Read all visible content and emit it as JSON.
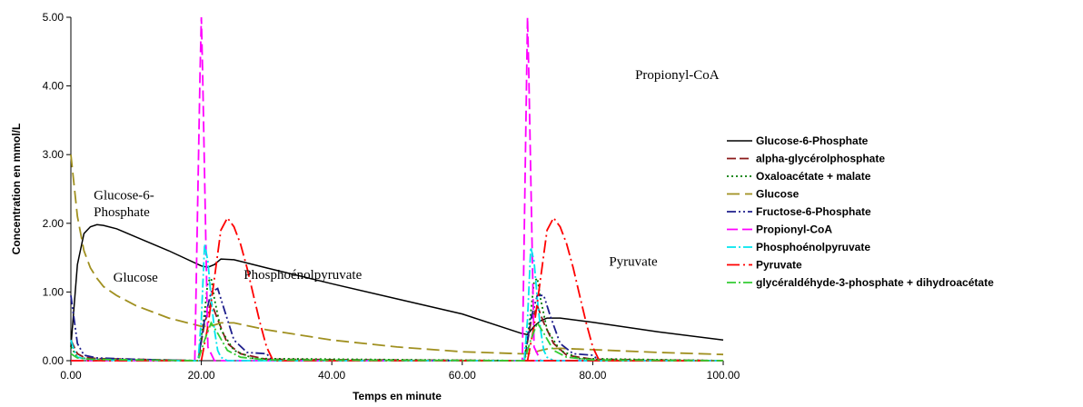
{
  "chart_data": {
    "type": "line",
    "xlabel": "Temps en minute",
    "ylabel": "Concentration en mmol/L",
    "xlim": [
      0,
      100
    ],
    "ylim": [
      0,
      5
    ],
    "x_ticks": [
      "0.00",
      "20.00",
      "40.00",
      "60.00",
      "80.00",
      "100.00"
    ],
    "y_ticks": [
      "0.00",
      "1.00",
      "2.00",
      "3.00",
      "4.00",
      "5.00"
    ],
    "grid": false,
    "legend_position": "right",
    "annotations": [
      {
        "text": "Glucose-6-",
        "x": 3.5,
        "y": 2.35
      },
      {
        "text": "Phosphate",
        "x": 3.5,
        "y": 2.1
      },
      {
        "text": "Glucose",
        "x": 6.5,
        "y": 1.15
      },
      {
        "text": "Phosphoénolpyruvate",
        "x": 26.5,
        "y": 1.19
      },
      {
        "text": "Propionyl-CoA",
        "x": 86.5,
        "y": 4.1
      },
      {
        "text": "Pyruvate",
        "x": 82.5,
        "y": 1.38
      }
    ],
    "series": [
      {
        "name": "Glucose-6-Phosphate",
        "color": "#000000",
        "dash": "",
        "x": [
          0,
          1,
          2,
          3,
          4,
          5,
          7,
          10,
          15,
          20,
          21,
          22,
          23,
          25,
          30,
          40,
          50,
          60,
          69,
          70,
          71,
          72,
          73,
          75,
          80,
          90,
          100
        ],
        "y": [
          0.2,
          1.4,
          1.85,
          1.95,
          1.98,
          1.97,
          1.92,
          1.8,
          1.6,
          1.38,
          1.36,
          1.4,
          1.48,
          1.47,
          1.35,
          1.12,
          0.9,
          0.68,
          0.4,
          0.38,
          0.5,
          0.58,
          0.62,
          0.62,
          0.56,
          0.42,
          0.3
        ]
      },
      {
        "name": "alpha-glycérolphosphate",
        "color": "#8B1A1A",
        "dash": "10,4",
        "x": [
          0,
          1,
          2,
          4,
          10,
          19.5,
          20.5,
          21.5,
          22.5,
          24,
          26,
          30,
          69.5,
          70.5,
          71.5,
          72.5,
          74,
          76,
          80,
          100
        ],
        "y": [
          0.3,
          0.1,
          0.05,
          0.03,
          0.02,
          0.0,
          0.55,
          0.85,
          0.6,
          0.25,
          0.1,
          0.02,
          0.0,
          0.55,
          0.8,
          0.55,
          0.25,
          0.08,
          0.02,
          0.0
        ]
      },
      {
        "name": "Oxaloacétate + malate",
        "color": "#007A00",
        "dash": "2,3",
        "x": [
          0,
          1,
          3,
          10,
          19.5,
          20.5,
          21,
          21.5,
          22,
          23,
          25,
          28,
          69.5,
          70.5,
          71,
          71.5,
          72,
          73,
          75,
          78,
          100
        ],
        "y": [
          0.2,
          0.05,
          0.02,
          0.01,
          0.0,
          0.7,
          1.15,
          1.2,
          0.9,
          0.45,
          0.15,
          0.03,
          0.0,
          0.7,
          1.15,
          1.2,
          0.9,
          0.45,
          0.15,
          0.03,
          0.0
        ]
      },
      {
        "name": "Glucose",
        "color": "#A09020",
        "dash": "14,6",
        "x": [
          0,
          1,
          2,
          3,
          4,
          5,
          7,
          10,
          15,
          20,
          21,
          22,
          23,
          25,
          30,
          40,
          50,
          60,
          69,
          70,
          71,
          72,
          73,
          75,
          80,
          90,
          100
        ],
        "y": [
          3.0,
          2.1,
          1.6,
          1.35,
          1.2,
          1.08,
          0.95,
          0.8,
          0.62,
          0.5,
          0.5,
          0.52,
          0.55,
          0.55,
          0.45,
          0.3,
          0.2,
          0.13,
          0.1,
          0.1,
          0.12,
          0.15,
          0.17,
          0.18,
          0.16,
          0.12,
          0.09
        ]
      },
      {
        "name": "Fructose-6-Phosphate",
        "color": "#1E1E8C",
        "dash": "10,3,2,3,2,3",
        "x": [
          0,
          0.5,
          1,
          2,
          4,
          10,
          19.5,
          20.5,
          21.5,
          22.5,
          23.5,
          25,
          27,
          30,
          31,
          69.5,
          70.5,
          71.5,
          72.5,
          73.5,
          75,
          77,
          80,
          81,
          100
        ],
        "y": [
          0.95,
          0.6,
          0.25,
          0.08,
          0.04,
          0.02,
          0.0,
          0.6,
          1.0,
          1.05,
          0.75,
          0.3,
          0.12,
          0.1,
          0.0,
          0.0,
          0.6,
          0.95,
          0.95,
          0.65,
          0.25,
          0.1,
          0.08,
          0.0,
          0.0
        ]
      },
      {
        "name": "Propionyl-CoA",
        "color": "#FF00FF",
        "dash": "12,5",
        "x": [
          0,
          19,
          19.8,
          20,
          20.2,
          21,
          22,
          100
        ],
        "y": [
          0,
          0,
          4.2,
          5.0,
          4.2,
          0.2,
          0.0,
          0
        ],
        "x2": [
          68,
          69.2,
          70,
          70.2,
          71,
          72,
          100
        ],
        "y2": [
          0,
          0,
          5.0,
          4.2,
          0.2,
          0.0,
          0
        ]
      },
      {
        "name": "Phosphoénolpyruvate",
        "color": "#00E5EE",
        "dash": "10,3,2,3",
        "x": [
          0,
          0.5,
          1,
          3,
          10,
          19.5,
          20,
          20.5,
          21,
          21.5,
          22,
          22.5,
          23,
          24,
          100
        ],
        "y": [
          0.3,
          0.15,
          0.05,
          0.01,
          0.0,
          0.0,
          0.6,
          1.7,
          1.45,
          0.9,
          0.45,
          0.15,
          0.05,
          0.0,
          0.0
        ],
        "x2": [
          69.5,
          70,
          70.5,
          71,
          71.5,
          72,
          72.5,
          73,
          74,
          100
        ],
        "y2": [
          0.0,
          0.6,
          1.65,
          1.45,
          0.9,
          0.45,
          0.15,
          0.05,
          0.0,
          0.0
        ]
      },
      {
        "name": "Pyruvate",
        "color": "#FF0000",
        "dash": "14,4,2,4",
        "x": [
          0,
          20,
          21,
          22,
          23,
          24,
          25,
          26,
          27,
          28,
          29,
          30,
          31,
          100
        ],
        "y": [
          0,
          0,
          0.5,
          1.2,
          1.9,
          2.08,
          1.95,
          1.7,
          1.35,
          0.95,
          0.55,
          0.2,
          0.0,
          0
        ],
        "x2": [
          70,
          71,
          72,
          73,
          74,
          75,
          76,
          77,
          78,
          79,
          80,
          81,
          100
        ],
        "y2": [
          0,
          0.5,
          1.2,
          1.9,
          2.08,
          1.95,
          1.7,
          1.35,
          0.95,
          0.55,
          0.2,
          0.0,
          0
        ]
      },
      {
        "name": "glycéraldéhyde-3-phosphate + dihydroacétate",
        "color": "#33CC33",
        "dash": "10,3,2,3",
        "x": [
          0,
          1,
          3,
          10,
          19.5,
          20.5,
          21.5,
          22.5,
          24,
          26,
          30,
          69.5,
          70.5,
          71.5,
          72.5,
          74,
          76,
          80,
          100
        ],
        "y": [
          0.1,
          0.04,
          0.02,
          0.01,
          0.0,
          0.3,
          0.55,
          0.4,
          0.15,
          0.05,
          0.01,
          0.0,
          0.3,
          0.55,
          0.4,
          0.15,
          0.05,
          0.01,
          0.0
        ]
      }
    ]
  }
}
